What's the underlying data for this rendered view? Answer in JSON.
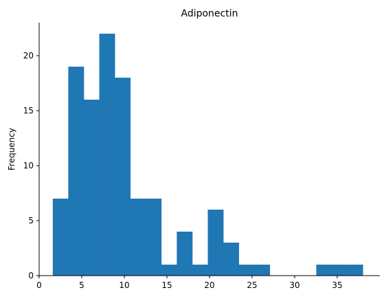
{
  "chart_data": {
    "type": "bar",
    "title": "Adiponectin",
    "xlabel": "",
    "ylabel": "Frequency",
    "xlim": [
      0,
      40
    ],
    "ylim": [
      0,
      23
    ],
    "xticks": [
      0,
      5,
      10,
      15,
      20,
      25,
      30,
      35
    ],
    "yticks": [
      0,
      5,
      10,
      15,
      20
    ],
    "bin_edges": [
      1.6,
      3.42,
      5.24,
      7.06,
      8.88,
      10.7,
      12.52,
      14.34,
      16.16,
      17.98,
      19.8,
      21.62,
      23.44,
      25.26,
      27.08,
      28.9,
      30.72,
      32.54,
      34.36,
      36.18,
      38.0
    ],
    "values": [
      7,
      19,
      16,
      22,
      18,
      7,
      7,
      1,
      4,
      1,
      6,
      3,
      1,
      1,
      0,
      0,
      0,
      1,
      1,
      1
    ],
    "color": "#1f77b4",
    "grid": false,
    "legend": "none"
  }
}
